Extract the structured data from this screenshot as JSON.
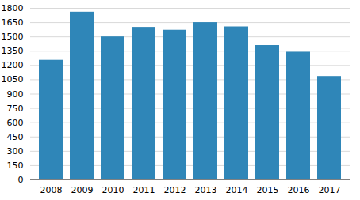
{
  "chart_data": {
    "type": "bar",
    "categories": [
      "2008",
      "2009",
      "2010",
      "2011",
      "2012",
      "2013",
      "2014",
      "2015",
      "2016",
      "2017"
    ],
    "values": [
      1255,
      1760,
      1500,
      1600,
      1570,
      1650,
      1605,
      1410,
      1340,
      1085
    ],
    "color": "#2f86b8",
    "ylim": [
      0,
      1800
    ],
    "yticks": [
      0,
      150,
      300,
      450,
      600,
      750,
      900,
      1050,
      1200,
      1350,
      1500,
      1650,
      1800
    ],
    "grid": true
  }
}
